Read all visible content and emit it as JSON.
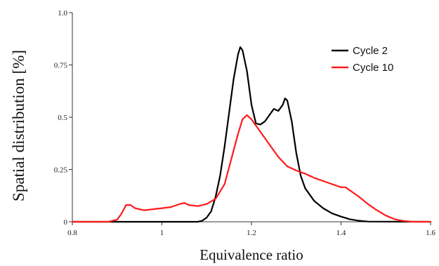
{
  "chart_data": {
    "type": "line",
    "title": "",
    "xlabel": "Equivalence ratio",
    "ylabel": "Spatial distribution [%]",
    "xlim": [
      0.8,
      1.6
    ],
    "ylim": [
      0,
      1.0
    ],
    "x_ticks": [
      "0.8",
      "1",
      "1.2",
      "1.4",
      "1.6"
    ],
    "y_ticks": [
      "0",
      "0.25",
      "0.5",
      "0.75",
      "1.0"
    ],
    "x_tick_values": [
      0.8,
      1.0,
      1.2,
      1.4,
      1.6
    ],
    "y_tick_values": [
      0,
      0.25,
      0.5,
      0.75,
      1.0
    ],
    "grid": false,
    "legend_position": "top-right",
    "series": [
      {
        "name": "Cycle 2",
        "color": "#000000",
        "points": [
          [
            0.8,
            0
          ],
          [
            1.08,
            0
          ],
          [
            1.09,
            0.005
          ],
          [
            1.1,
            0.02
          ],
          [
            1.11,
            0.05
          ],
          [
            1.12,
            0.12
          ],
          [
            1.13,
            0.22
          ],
          [
            1.14,
            0.36
          ],
          [
            1.15,
            0.52
          ],
          [
            1.16,
            0.68
          ],
          [
            1.17,
            0.8
          ],
          [
            1.175,
            0.835
          ],
          [
            1.18,
            0.82
          ],
          [
            1.19,
            0.72
          ],
          [
            1.2,
            0.56
          ],
          [
            1.21,
            0.47
          ],
          [
            1.22,
            0.465
          ],
          [
            1.23,
            0.48
          ],
          [
            1.24,
            0.51
          ],
          [
            1.25,
            0.54
          ],
          [
            1.26,
            0.53
          ],
          [
            1.27,
            0.56
          ],
          [
            1.275,
            0.59
          ],
          [
            1.28,
            0.58
          ],
          [
            1.29,
            0.48
          ],
          [
            1.3,
            0.33
          ],
          [
            1.31,
            0.22
          ],
          [
            1.32,
            0.16
          ],
          [
            1.34,
            0.1
          ],
          [
            1.36,
            0.065
          ],
          [
            1.38,
            0.04
          ],
          [
            1.4,
            0.025
          ],
          [
            1.42,
            0.012
          ],
          [
            1.44,
            0.005
          ],
          [
            1.46,
            0.001
          ],
          [
            1.6,
            0
          ]
        ]
      },
      {
        "name": "Cycle 10",
        "color": "#ff1a1a",
        "points": [
          [
            0.8,
            0
          ],
          [
            0.88,
            0
          ],
          [
            0.9,
            0.01
          ],
          [
            0.91,
            0.04
          ],
          [
            0.92,
            0.08
          ],
          [
            0.93,
            0.08
          ],
          [
            0.94,
            0.065
          ],
          [
            0.96,
            0.055
          ],
          [
            0.98,
            0.06
          ],
          [
            1.0,
            0.065
          ],
          [
            1.02,
            0.07
          ],
          [
            1.04,
            0.085
          ],
          [
            1.05,
            0.09
          ],
          [
            1.06,
            0.08
          ],
          [
            1.08,
            0.075
          ],
          [
            1.1,
            0.085
          ],
          [
            1.12,
            0.11
          ],
          [
            1.14,
            0.18
          ],
          [
            1.15,
            0.26
          ],
          [
            1.16,
            0.34
          ],
          [
            1.17,
            0.42
          ],
          [
            1.18,
            0.49
          ],
          [
            1.19,
            0.51
          ],
          [
            1.2,
            0.49
          ],
          [
            1.22,
            0.43
          ],
          [
            1.24,
            0.37
          ],
          [
            1.26,
            0.31
          ],
          [
            1.28,
            0.265
          ],
          [
            1.3,
            0.245
          ],
          [
            1.32,
            0.23
          ],
          [
            1.34,
            0.21
          ],
          [
            1.36,
            0.195
          ],
          [
            1.38,
            0.18
          ],
          [
            1.4,
            0.165
          ],
          [
            1.41,
            0.165
          ],
          [
            1.42,
            0.15
          ],
          [
            1.44,
            0.12
          ],
          [
            1.46,
            0.085
          ],
          [
            1.48,
            0.055
          ],
          [
            1.5,
            0.03
          ],
          [
            1.52,
            0.012
          ],
          [
            1.54,
            0.004
          ],
          [
            1.56,
            0
          ],
          [
            1.6,
            0
          ]
        ]
      }
    ]
  }
}
